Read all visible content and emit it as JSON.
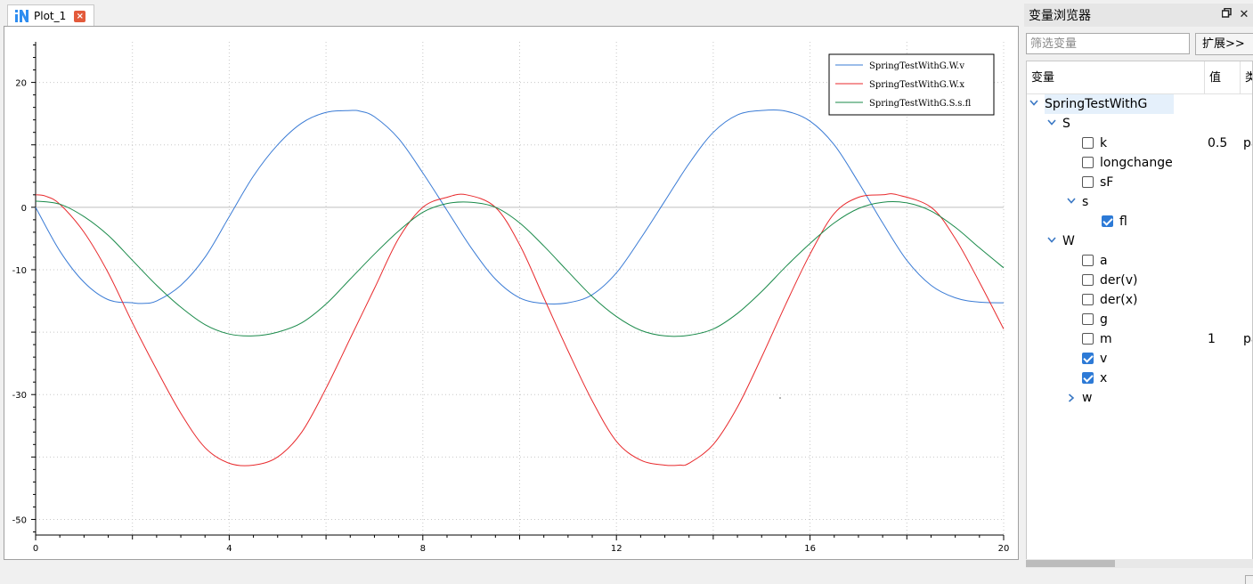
{
  "plot_tab": {
    "title": "Plot_1"
  },
  "variable_browser": {
    "title": "变量浏览器",
    "filter_placeholder": "筛选变量",
    "expand_label": "扩展>>",
    "columns": {
      "variable": "变量",
      "value": "值",
      "type": "类"
    },
    "tree": {
      "root": "SpringTestWithG",
      "S": "S",
      "k": "k",
      "k_value": "0.5",
      "k_type": "pa",
      "longchange": "longchange",
      "sF": "sF",
      "s": "s",
      "fl": "fl",
      "W": "W",
      "a": "a",
      "der_v": "der(v)",
      "der_x": "der(x)",
      "g": "g",
      "m": "m",
      "m_value": "1",
      "m_type": "pa",
      "v": "v",
      "x": "x",
      "w": "w"
    }
  },
  "colors": {
    "v": "#3a7bd5",
    "x": "#e8292c",
    "fl": "#1a8a4a"
  },
  "chart_data": {
    "type": "line",
    "x_ticks": [
      0,
      4,
      8,
      12,
      16,
      20
    ],
    "y_ticks": [
      20,
      0,
      -10,
      -30,
      -50
    ],
    "xlim": [
      0,
      20
    ],
    "ylim": [
      -52.5,
      26.5
    ],
    "grid": true,
    "legend_position": "top-right",
    "series": [
      {
        "name": "SpringTestWithG.W.v",
        "x": [
          0,
          0.5,
          1,
          1.5,
          2,
          2.2,
          2.5,
          3,
          3.5,
          4,
          4.5,
          5,
          5.5,
          6,
          6.5,
          6.7,
          7,
          7.5,
          8,
          8.5,
          9,
          9.5,
          10,
          10.5,
          11,
          11.5,
          12,
          12.5,
          13,
          13.5,
          14,
          14.5,
          15,
          15.5,
          16,
          16.5,
          17,
          17.5,
          18,
          18.5,
          19,
          19.5,
          20
        ],
        "y": [
          0,
          -7,
          -12,
          -14.8,
          -15.3,
          -15.4,
          -15,
          -12.5,
          -8,
          -1.5,
          5,
          10,
          13.5,
          15.2,
          15.5,
          15.4,
          14.5,
          11,
          5.5,
          -0.5,
          -6.5,
          -11.5,
          -14.5,
          -15.4,
          -15.3,
          -14,
          -10.5,
          -5,
          1,
          7,
          12,
          14.8,
          15.5,
          15.4,
          13.8,
          10,
          4,
          -2.5,
          -8.5,
          -12.5,
          -14.5,
          -15.2,
          -15.3
        ]
      },
      {
        "name": "SpringTestWithG.W.x",
        "x": [
          0,
          0.2,
          0.5,
          1,
          1.5,
          2,
          2.5,
          3,
          3.5,
          4,
          4.5,
          5,
          5.5,
          6,
          6.5,
          7,
          7.5,
          8,
          8.5,
          8.9,
          9.5,
          10,
          10.5,
          11,
          11.5,
          12,
          12.5,
          13,
          13.3,
          13.5,
          14,
          14.5,
          15,
          15.5,
          16,
          16.5,
          17,
          17.5,
          17.8,
          18.5,
          19,
          19.5,
          20
        ],
        "y": [
          2,
          1.8,
          0.5,
          -4,
          -10.5,
          -18.5,
          -26,
          -33,
          -38.5,
          -41,
          -41.3,
          -40,
          -36,
          -29,
          -21,
          -13,
          -5,
          0,
          1.6,
          2,
          0,
          -6,
          -14.5,
          -23,
          -31,
          -37.5,
          -40.5,
          -41.3,
          -41.3,
          -41,
          -38,
          -32,
          -24,
          -15.5,
          -7.5,
          -1,
          1.6,
          2,
          2,
          0,
          -5,
          -12,
          -19.5
        ]
      },
      {
        "name": "SpringTestWithG.S.s.fl",
        "x": [
          0,
          0.5,
          1,
          1.5,
          2,
          2.5,
          3,
          3.5,
          4,
          4.5,
          5,
          5.5,
          6,
          6.5,
          7,
          7.5,
          8,
          8.5,
          9,
          9.5,
          10,
          10.5,
          11,
          11.5,
          12,
          12.5,
          13,
          13.5,
          14,
          14.5,
          15,
          15.5,
          16,
          16.5,
          17,
          17.5,
          18,
          18.5,
          19,
          19.5,
          20
        ],
        "y": [
          1,
          0.5,
          -1.5,
          -4.5,
          -8.5,
          -12.5,
          -16,
          -18.8,
          -20.3,
          -20.6,
          -20,
          -18.5,
          -15.5,
          -11.5,
          -7.5,
          -3.8,
          -0.8,
          0.6,
          0.8,
          0,
          -2.5,
          -6.2,
          -10.3,
          -14.3,
          -17.5,
          -19.7,
          -20.6,
          -20.5,
          -19.5,
          -17,
          -13.5,
          -9.5,
          -5.8,
          -2.5,
          -0.2,
          0.8,
          0.7,
          -0.6,
          -3.2,
          -6.5,
          -9.7
        ]
      }
    ]
  }
}
